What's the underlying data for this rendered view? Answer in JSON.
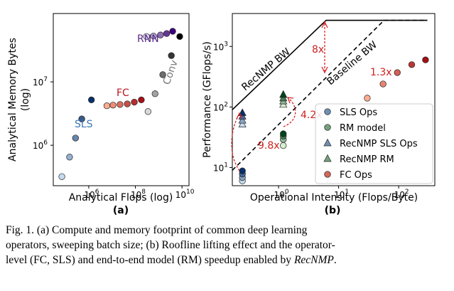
{
  "chart_data": [
    {
      "type": "scatter",
      "panel_label": "(a)",
      "xlabel": "Analytical Flops (log)",
      "ylabel": "Analytical Memory Bytes\n(log)",
      "x_scale": "log",
      "y_scale": "log",
      "xlim": [
        30000.0,
        20000000000.0
      ],
      "ylim": [
        230000.0,
        120000000.0
      ],
      "x_ticks": [
        {
          "v": 1000000.0,
          "label": "10^6"
        },
        {
          "v": 100000000.0,
          "label": "10^8"
        },
        {
          "v": 10000000000.0,
          "label": "10^10"
        }
      ],
      "y_ticks": [
        {
          "v": 1000000.0,
          "label": "10^6"
        },
        {
          "v": 10000000.0,
          "label": "10^7"
        }
      ],
      "series": [
        {
          "name": "SLS",
          "color_start": "#c6dbef",
          "color_end": "#08306b",
          "x": [
            70000.0,
            150000.0,
            270000.0,
            500000.0,
            1300000.0
          ],
          "y": [
            320000.0,
            650000.0,
            1300000.0,
            2600000.0,
            5200000.0
          ]
        },
        {
          "name": "FC",
          "color_start": "#fcae91",
          "color_end": "#a50f15",
          "x": [
            6000000.0,
            11000000.0,
            22000000.0,
            45000000.0,
            90000000.0,
            180000000.0
          ],
          "y": [
            4200000.0,
            4300000.0,
            4400000.0,
            4500000.0,
            4800000.0,
            5200000.0
          ]
        },
        {
          "name": "RNN",
          "color_start": "#dadaeb",
          "color_end": "#3f007d",
          "x": [
            300000000.0,
            600000000.0,
            1200000000.0,
            2200000000.0,
            4000000000.0
          ],
          "y": [
            52000000.0,
            53000000.0,
            55000000.0,
            58000000.0,
            63000000.0
          ]
        },
        {
          "name": "Conv",
          "color_start": "#d9d9d9",
          "color_end": "#000000",
          "x": [
            350000000.0,
            700000000.0,
            1500000000.0,
            3500000000.0,
            8000000000.0
          ],
          "y": [
            3400000.0,
            6500000.0,
            13000000.0,
            26000000.0,
            52000000.0
          ]
        }
      ],
      "annotations": [
        {
          "text": "SLS",
          "color": "#3a78b5"
        },
        {
          "text": "FC",
          "color": "#b8141e"
        },
        {
          "text": "RNN",
          "color": "#5a2a8a"
        },
        {
          "text": "Conv",
          "color": "#777777"
        }
      ]
    },
    {
      "type": "scatter",
      "panel_label": "(b)",
      "xlabel": "Operational Intensity (Flops/Byte)",
      "ylabel": "Performance (GFlops/s)",
      "x_scale": "log",
      "y_scale": "log",
      "xlim": [
        0.17,
        400
      ],
      "ylim": [
        5,
        3500
      ],
      "x_ticks": [
        {
          "v": 1,
          "label": "10^0"
        },
        {
          "v": 10,
          "label": "10^1"
        },
        {
          "v": 100,
          "label": "10^2"
        }
      ],
      "y_ticks": [
        {
          "v": 10,
          "label": "10^1"
        },
        {
          "v": 100,
          "label": "10^2"
        },
        {
          "v": 1000,
          "label": "10^3"
        }
      ],
      "rooflines": [
        {
          "name": "RecNMP BW",
          "style": "solid",
          "x": [
            0.17,
            6.2,
            300
          ],
          "y": [
            90,
            2700,
            2700
          ]
        },
        {
          "name": "Baseline BW",
          "style": "dashed",
          "x": [
            0.17,
            57,
            300
          ],
          "y": [
            9,
            2700,
            2700
          ]
        }
      ],
      "series": [
        {
          "name": "SLS Ops",
          "marker": "circle",
          "color_start": "#c6dbef",
          "color_end": "#08306b",
          "x": [
            0.25,
            0.25,
            0.25,
            0.25
          ],
          "y": [
            6,
            6.8,
            7.8,
            8.8
          ]
        },
        {
          "name": "RM model",
          "marker": "circle",
          "color_start": "#d5efcf",
          "color_end": "#00441b",
          "x": [
            1.2,
            1.2,
            1.2,
            1.2
          ],
          "y": [
            23,
            29,
            33,
            36
          ]
        },
        {
          "name": "RecNMP SLS Ops",
          "marker": "triangle",
          "color_start": "#c6dbef",
          "color_end": "#08306b",
          "x": [
            0.25,
            0.25,
            0.25,
            0.25
          ],
          "y": [
            52,
            60,
            70,
            80
          ]
        },
        {
          "name": "RecNMP RM",
          "marker": "triangle",
          "color_start": "#d5efcf",
          "color_end": "#00441b",
          "x": [
            1.2,
            1.2,
            1.2,
            1.2
          ],
          "y": [
            110,
            125,
            140,
            160
          ]
        },
        {
          "name": "FC Ops",
          "marker": "circle",
          "color_start": "#fcae91",
          "color_end": "#a50f15",
          "x": [
            30,
            55,
            95,
            165,
            280
          ],
          "y": [
            140,
            240,
            370,
            500,
            600
          ]
        }
      ],
      "annotations": [
        {
          "text": "8x",
          "color": "#cc2222"
        },
        {
          "text": "1.3x",
          "color": "#cc2222"
        },
        {
          "text": "4.2x",
          "color": "#cc2222"
        },
        {
          "text": "9.8x",
          "color": "#cc2222"
        },
        {
          "text": "RecNMP BW",
          "color": "#000000"
        },
        {
          "text": "Baseline BW",
          "color": "#000000"
        }
      ]
    }
  ],
  "caption": {
    "line1": "Fig. 1.   (a) Compute and memory footprint of common deep learning",
    "line2": "operators, sweeping batch size; (b) Roofline lifting effect and the operator-",
    "line3_pre": "level (FC, SLS) and end-to-end model (RM) speedup enabled by ",
    "line3_em": "RecNMP",
    "line3_post": "."
  }
}
